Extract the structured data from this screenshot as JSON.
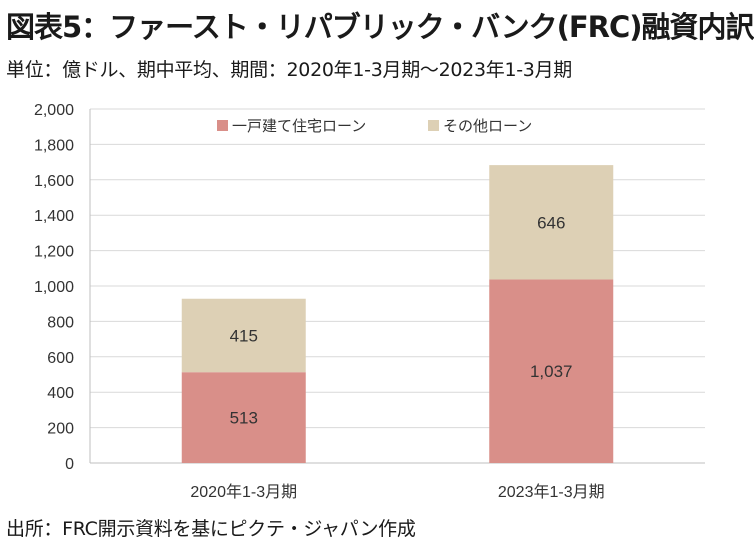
{
  "header": {
    "title": "図表5：ファースト・リパブリック・バンク(FRC)融資内訳",
    "subtitle": "単位：億ドル、期中平均、期間：2020年1-3月期～2023年1-3月期"
  },
  "footer": {
    "source": "出所：FRC開示資料を基にピクテ・ジャパン作成"
  },
  "chart_data": {
    "type": "bar",
    "stacked": true,
    "categories": [
      "2020年1-3月期",
      "2023年1-3月期"
    ],
    "series": [
      {
        "name": "一戸建て住宅ローン",
        "values": [
          513,
          1037
        ],
        "labels": [
          "513",
          "1,037"
        ],
        "color": "#d98f89"
      },
      {
        "name": "その他ローン",
        "values": [
          415,
          646
        ],
        "labels": [
          "415",
          "646"
        ],
        "color": "#ddd0b5"
      }
    ],
    "ylim": [
      0,
      2000
    ],
    "yticks": [
      0,
      200,
      400,
      600,
      800,
      1000,
      1200,
      1400,
      1600,
      1800,
      2000
    ],
    "ytick_labels": [
      "0",
      "200",
      "400",
      "600",
      "800",
      "1,000",
      "1,200",
      "1,400",
      "1,600",
      "1,800",
      "2,000"
    ],
    "grid": true,
    "legend": "top-center",
    "xlabel": "",
    "ylabel": ""
  }
}
